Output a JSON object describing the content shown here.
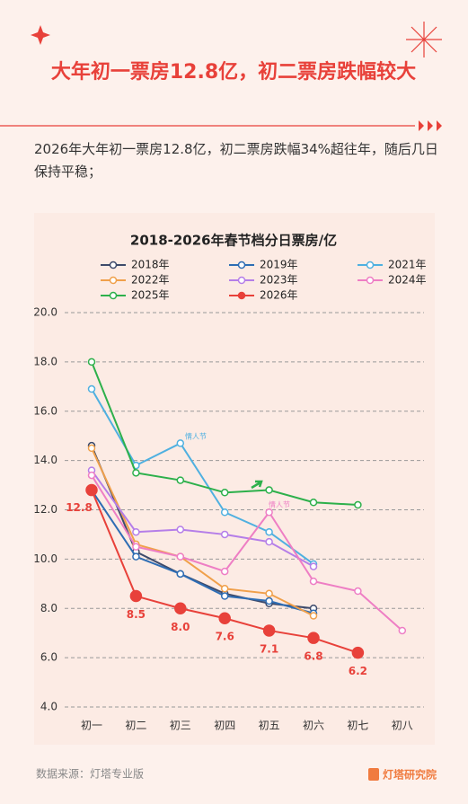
{
  "header": {
    "title": "大年初一票房12.8亿，初二票房跌幅较大",
    "subtitle": "2026年大年初一票房12.8亿，初二票房跌幅34%超往年，随后几日保持平稳；"
  },
  "chart_data": {
    "type": "line",
    "title": "2018-2026年春节档分日票房/亿",
    "categories": [
      "初一",
      "初二",
      "初三",
      "初四",
      "初五",
      "初六",
      "初七",
      "初八"
    ],
    "ylim": [
      4,
      20
    ],
    "yticks": [
      {
        "value": 4,
        "label": "4.0"
      },
      {
        "value": 6,
        "label": "6.0"
      },
      {
        "value": 8,
        "label": "8.0"
      },
      {
        "value": 10,
        "label": "10.0"
      },
      {
        "value": 12,
        "label": "12.0"
      },
      {
        "value": 14,
        "label": "14.0"
      },
      {
        "value": 16,
        "label": "16.0"
      },
      {
        "value": 18,
        "label": "18.0"
      },
      {
        "value": 20,
        "label": "20.0"
      }
    ],
    "grid": true,
    "series": [
      {
        "name": "2018年",
        "color": "#3d4a6b",
        "values": [
          14.6,
          10.3,
          9.4,
          8.6,
          8.2,
          8.0,
          null,
          null
        ]
      },
      {
        "name": "2019年",
        "color": "#2e6db4",
        "values": [
          12.8,
          10.1,
          9.4,
          8.5,
          8.3,
          7.8,
          null,
          null
        ]
      },
      {
        "name": "2021年",
        "color": "#4fb0e0",
        "values": [
          16.9,
          13.8,
          14.7,
          11.9,
          11.1,
          9.8,
          null,
          null
        ]
      },
      {
        "name": "2022年",
        "color": "#f0a04b",
        "values": [
          14.5,
          10.6,
          10.1,
          8.8,
          8.6,
          7.7,
          null,
          null
        ]
      },
      {
        "name": "2023年",
        "color": "#b57ee8",
        "values": [
          13.6,
          11.1,
          11.2,
          11.0,
          10.7,
          9.7,
          null,
          null
        ]
      },
      {
        "name": "2024年",
        "color": "#ee7ec4",
        "values": [
          13.4,
          10.5,
          10.1,
          9.5,
          11.9,
          9.1,
          8.7,
          7.1
        ]
      },
      {
        "name": "2025年",
        "color": "#2db04b",
        "values": [
          18.0,
          13.5,
          13.2,
          12.7,
          12.8,
          12.3,
          12.2,
          null
        ]
      },
      {
        "name": "2026年",
        "color": "#e8413a",
        "values": [
          12.8,
          8.5,
          8.0,
          7.6,
          7.1,
          6.8,
          6.2,
          null
        ],
        "value_labels": [
          "12.8",
          "8.5",
          "8.0",
          "7.6",
          "7.1",
          "6.8",
          "6.2",
          null
        ]
      }
    ],
    "annotations": [
      {
        "text": "情人节",
        "color": "#4fb0e0"
      },
      {
        "text": "情人节",
        "color": "#ee7ec4"
      }
    ]
  },
  "footer": {
    "source": "数据来源：灯塔专业版",
    "logo": "灯塔研究院"
  }
}
